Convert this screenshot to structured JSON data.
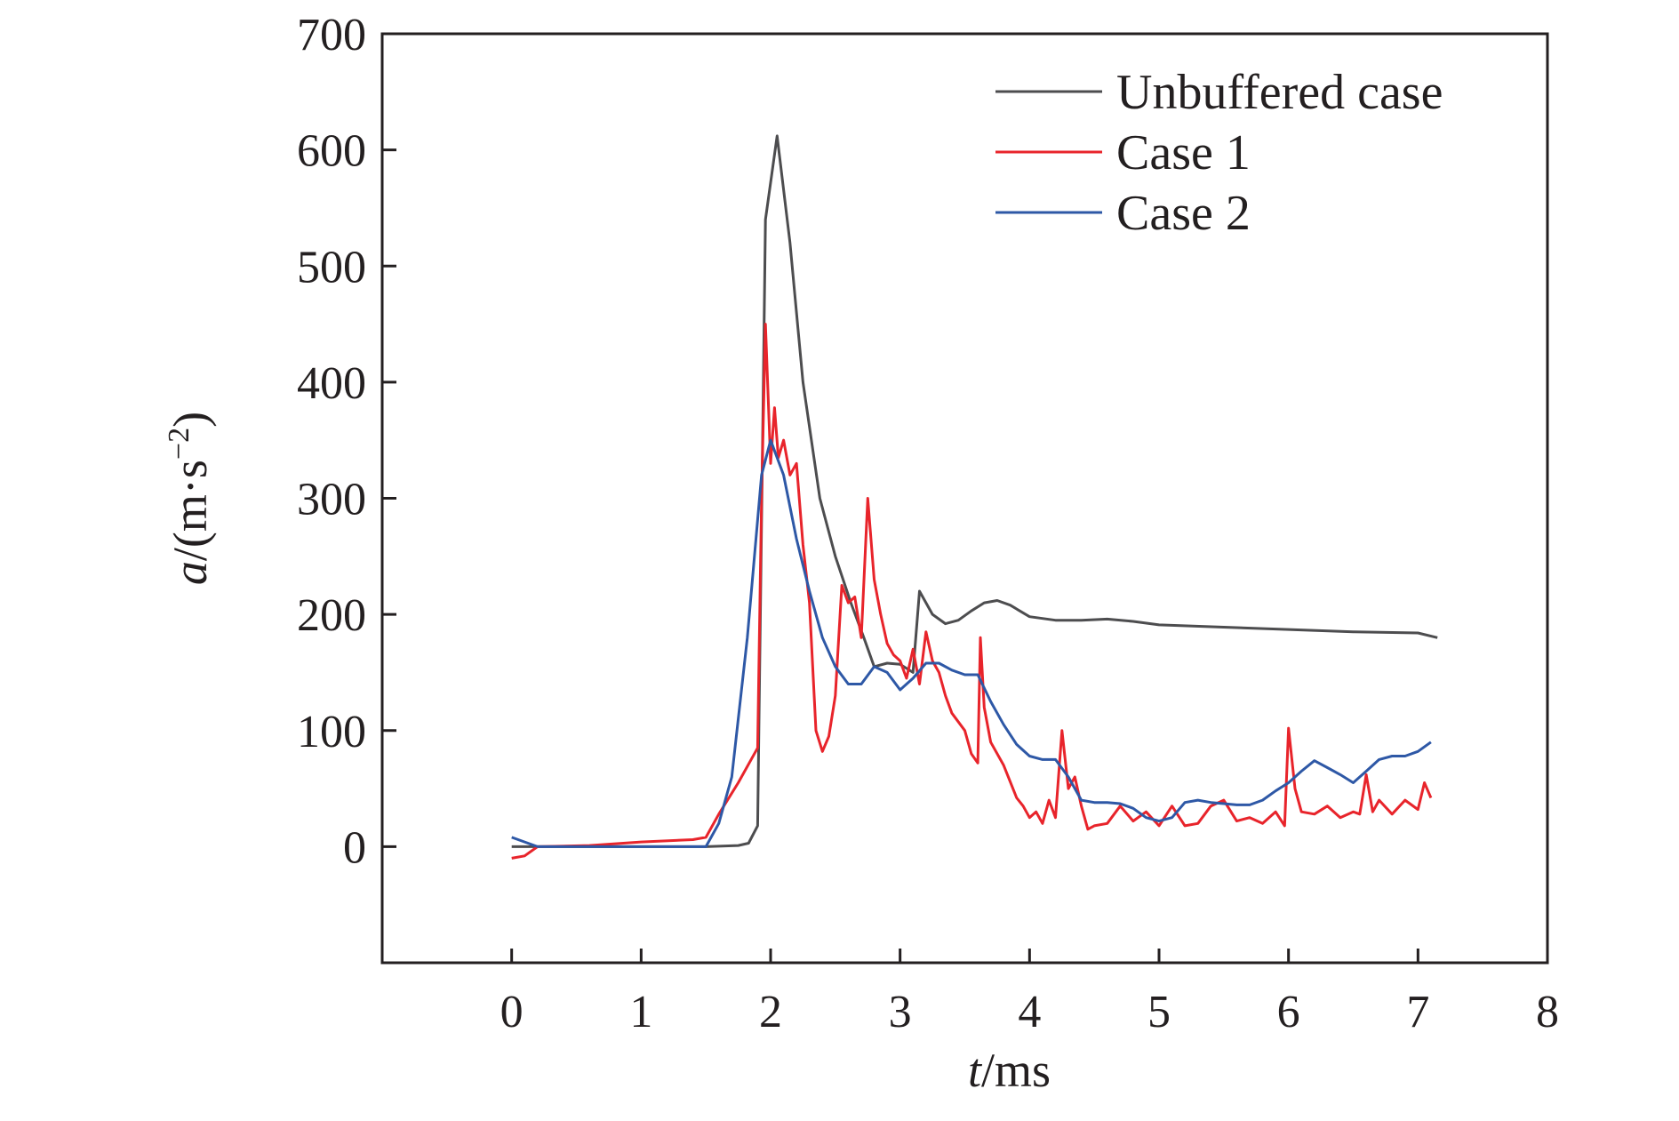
{
  "chart_data": {
    "type": "line",
    "title": "",
    "xlabel": {
      "var": "t",
      "unit": "/ms"
    },
    "ylabel": {
      "var": "a",
      "unit": "/(m·s",
      "exp": "−2",
      "close": ")"
    },
    "xlim": [
      -1,
      8
    ],
    "ylim": [
      -100,
      700
    ],
    "xticks": [
      0,
      1,
      2,
      3,
      4,
      5,
      6,
      7,
      8
    ],
    "yticks": [
      0,
      100,
      200,
      300,
      400,
      500,
      600,
      700
    ],
    "grid": false,
    "legend_position": "top-right",
    "series": [
      {
        "name": "Unbuffered case",
        "color": "#4d4d4f",
        "x": [
          0.0,
          0.2,
          1.0,
          1.5,
          1.75,
          1.83,
          1.9,
          1.96,
          2.05,
          2.15,
          2.25,
          2.38,
          2.5,
          2.62,
          2.72,
          2.8,
          2.9,
          3.0,
          3.1,
          3.15,
          3.25,
          3.35,
          3.45,
          3.55,
          3.65,
          3.75,
          3.85,
          4.0,
          4.2,
          4.4,
          4.6,
          4.8,
          5.0,
          5.5,
          6.0,
          6.5,
          7.0,
          7.15
        ],
        "y": [
          0,
          0,
          0,
          0,
          1,
          3,
          18,
          540,
          612,
          520,
          400,
          300,
          250,
          210,
          180,
          155,
          158,
          157,
          150,
          220,
          200,
          192,
          195,
          203,
          210,
          212,
          208,
          198,
          195,
          195,
          196,
          194,
          191,
          189,
          187,
          185,
          184,
          180
        ]
      },
      {
        "name": "Case 1",
        "color": "#e8242b",
        "x": [
          0.0,
          0.1,
          0.2,
          0.6,
          1.0,
          1.4,
          1.5,
          1.6,
          1.75,
          1.9,
          1.93,
          1.96,
          2.0,
          2.03,
          2.06,
          2.1,
          2.15,
          2.2,
          2.25,
          2.3,
          2.35,
          2.4,
          2.45,
          2.5,
          2.55,
          2.6,
          2.65,
          2.7,
          2.75,
          2.8,
          2.85,
          2.9,
          2.95,
          3.0,
          3.05,
          3.1,
          3.15,
          3.2,
          3.25,
          3.3,
          3.35,
          3.4,
          3.5,
          3.55,
          3.6,
          3.62,
          3.65,
          3.7,
          3.8,
          3.9,
          3.95,
          4.0,
          4.05,
          4.1,
          4.15,
          4.2,
          4.25,
          4.3,
          4.35,
          4.4,
          4.45,
          4.5,
          4.6,
          4.7,
          4.8,
          4.9,
          5.0,
          5.1,
          5.2,
          5.3,
          5.4,
          5.5,
          5.6,
          5.7,
          5.8,
          5.9,
          5.97,
          6.0,
          6.05,
          6.1,
          6.2,
          6.3,
          6.4,
          6.5,
          6.55,
          6.6,
          6.65,
          6.7,
          6.8,
          6.9,
          7.0,
          7.05,
          7.1
        ],
        "y": [
          -10,
          -8,
          0,
          1,
          4,
          6,
          8,
          28,
          55,
          85,
          300,
          450,
          330,
          378,
          335,
          350,
          320,
          330,
          260,
          210,
          100,
          82,
          95,
          130,
          225,
          210,
          215,
          180,
          300,
          230,
          200,
          175,
          165,
          160,
          145,
          170,
          140,
          185,
          160,
          150,
          130,
          115,
          100,
          80,
          72,
          180,
          120,
          90,
          70,
          42,
          35,
          25,
          30,
          20,
          40,
          25,
          100,
          50,
          60,
          35,
          15,
          18,
          20,
          35,
          22,
          30,
          18,
          35,
          18,
          20,
          35,
          40,
          22,
          25,
          20,
          30,
          18,
          102,
          50,
          30,
          28,
          35,
          25,
          30,
          28,
          62,
          30,
          40,
          28,
          40,
          32,
          55,
          42
        ]
      },
      {
        "name": "Case 2",
        "color": "#2e58a6",
        "x": [
          0.0,
          0.2,
          0.8,
          1.5,
          1.6,
          1.7,
          1.82,
          1.93,
          2.0,
          2.1,
          2.2,
          2.3,
          2.4,
          2.5,
          2.6,
          2.7,
          2.8,
          2.9,
          3.0,
          3.1,
          3.2,
          3.3,
          3.4,
          3.5,
          3.6,
          3.7,
          3.8,
          3.9,
          4.0,
          4.1,
          4.2,
          4.3,
          4.4,
          4.5,
          4.6,
          4.7,
          4.8,
          4.9,
          5.0,
          5.1,
          5.2,
          5.3,
          5.4,
          5.5,
          5.6,
          5.7,
          5.8,
          5.9,
          6.0,
          6.1,
          6.2,
          6.3,
          6.4,
          6.5,
          6.6,
          6.7,
          6.8,
          6.9,
          7.0,
          7.1
        ],
        "y": [
          8,
          0,
          0,
          0,
          20,
          60,
          180,
          320,
          350,
          320,
          265,
          220,
          180,
          155,
          140,
          140,
          155,
          150,
          135,
          145,
          158,
          158,
          152,
          148,
          148,
          125,
          105,
          88,
          78,
          75,
          75,
          60,
          40,
          38,
          38,
          37,
          33,
          25,
          22,
          25,
          38,
          40,
          38,
          37,
          36,
          36,
          40,
          48,
          55,
          65,
          74,
          68,
          62,
          55,
          65,
          75,
          78,
          78,
          82,
          90
        ]
      }
    ]
  }
}
